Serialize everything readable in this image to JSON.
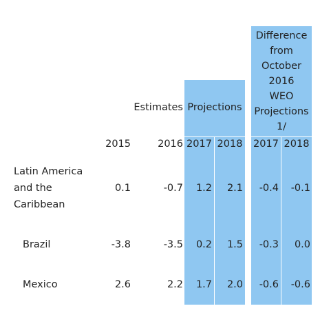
{
  "colors": {
    "projection_fill": "#8fc7f1",
    "text": "#222222"
  },
  "header": {
    "difference_lines": [
      "Difference",
      "from",
      "October",
      "2016",
      "WEO",
      "Projections",
      "1/"
    ],
    "estimates": "Estimates",
    "projections": "Projections",
    "years": [
      "2015",
      "2016",
      "2017",
      "2018",
      "2017",
      "2018"
    ]
  },
  "rows": [
    {
      "label_lines": [
        "Latin America",
        "and the",
        "Caribbean"
      ],
      "values": [
        "0.1",
        "-0.7",
        "1.2",
        "2.1",
        "-0.4",
        "-0.1"
      ]
    },
    {
      "label_lines": [
        "Brazil"
      ],
      "values": [
        "-3.8",
        "-3.5",
        "0.2",
        "1.5",
        "-0.3",
        "0.0"
      ]
    },
    {
      "label_lines": [
        "Mexico"
      ],
      "values": [
        "2.6",
        "2.2",
        "1.7",
        "2.0",
        "-0.6",
        "-0.6"
      ]
    }
  ]
}
